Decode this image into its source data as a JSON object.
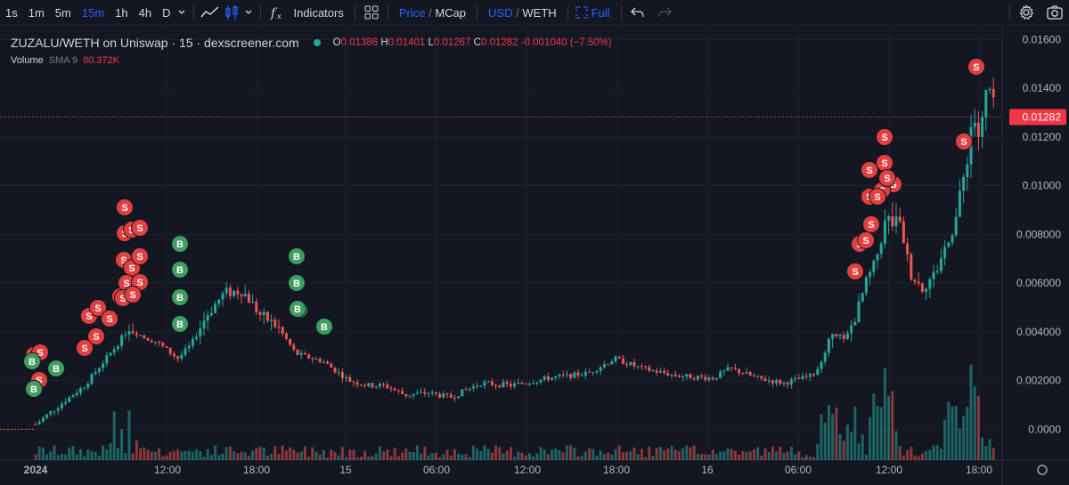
{
  "toolbar": {
    "timeframes": [
      {
        "label": "1s",
        "active": false
      },
      {
        "label": "1m",
        "active": false
      },
      {
        "label": "5m",
        "active": false
      },
      {
        "label": "15m",
        "active": true
      },
      {
        "label": "1h",
        "active": false
      },
      {
        "label": "4h",
        "active": false
      },
      {
        "label": "D",
        "active": false
      }
    ],
    "indicators_label": "Indicators",
    "price_label": "Price",
    "mcap_label": "MCap",
    "usd_label": "USD",
    "weth_label": "WETH",
    "full_label": "Full",
    "slash": "/"
  },
  "legend": {
    "title": "ZUZALU/WETH on Uniswap · 15 · dexscreener.com",
    "o_label": "O",
    "o_value": "0.01386",
    "h_label": "H",
    "h_value": "0.01401",
    "l_label": "L",
    "l_value": "0.01267",
    "c_label": "C",
    "c_value": "0.01282",
    "change": "-0.001040 (−7.50%)",
    "volume_label": "Volume",
    "sma_label": "SMA 9",
    "sma_value": "80.372K"
  },
  "colors": {
    "up": "#26a69a",
    "down": "#ef5350",
    "background": "#131722",
    "grid": "#1e222d",
    "sell_marker": "#e0403f",
    "buy_marker": "#3f9e5f",
    "accent": "#2962ff"
  },
  "chart_data": {
    "type": "candlestick",
    "y_ticks": [
      "0.01600",
      "0.01400",
      "0.01200",
      "0.01000",
      "0.008000",
      "0.006000",
      "0.004000",
      "0.002000",
      "0.0000"
    ],
    "x_ticks": [
      "2024",
      "12:00",
      "18:00",
      "15",
      "06:00",
      "12:00",
      "18:00",
      "16",
      "06:00",
      "12:00",
      "18:00"
    ],
    "ylim": [
      -0.0013,
      0.0166
    ],
    "last_price": "0.01282",
    "grid": true,
    "marker_labels": {
      "sell": "S",
      "buy": "B"
    }
  }
}
